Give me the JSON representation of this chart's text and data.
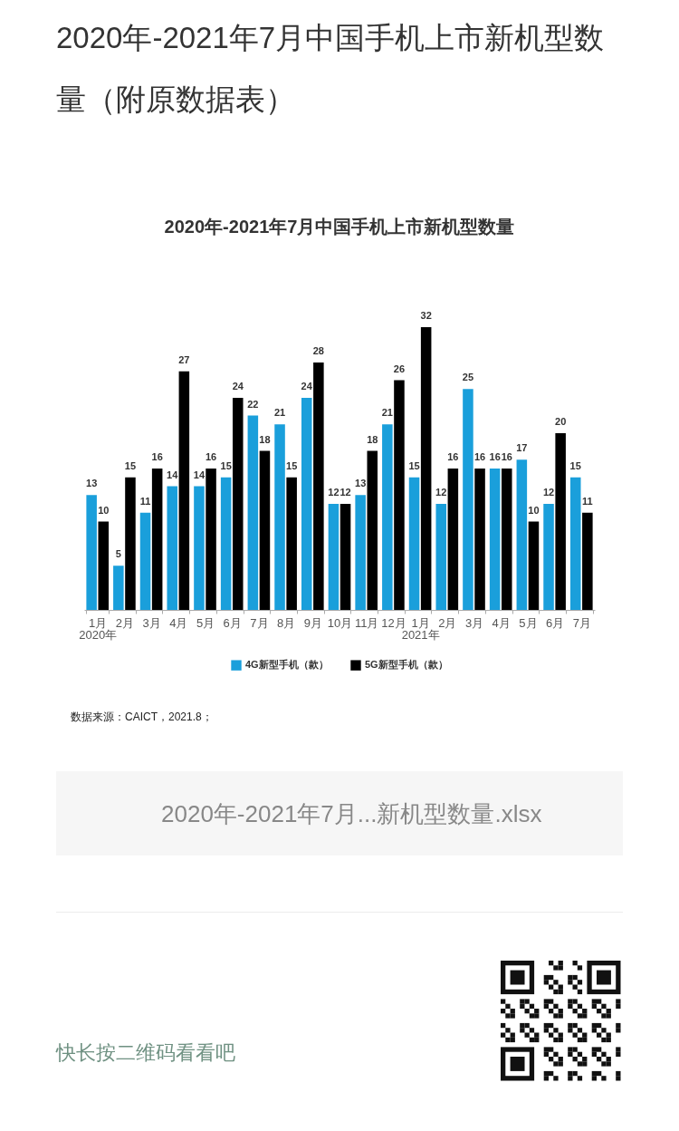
{
  "chart_data": {
    "type": "bar",
    "title": "2020年-2021年7月中国手机上市新机型数量（附原数据表）",
    "subtitle": "2020年-2021年7月中国手机上市新机型数量",
    "categories": [
      "1月\n2020年",
      "2月",
      "3月",
      "4月",
      "5月",
      "6月",
      "7月",
      "8月",
      "9月",
      "10月",
      "11月",
      "12月",
      "1月\n2021年",
      "2月",
      "3月",
      "4月",
      "5月",
      "6月",
      "7月"
    ],
    "series": [
      {
        "name": "4G新型手机（款）",
        "color": "#1a9fdb",
        "values": [
          13,
          5,
          11,
          14,
          14,
          15,
          22,
          21,
          24,
          12,
          13,
          21,
          15,
          12,
          25,
          16,
          17,
          12,
          15
        ]
      },
      {
        "name": "5G新型手机（款）",
        "color": "#000000",
        "values": [
          10,
          15,
          16,
          27,
          16,
          24,
          18,
          15,
          28,
          12,
          18,
          26,
          32,
          16,
          16,
          16,
          10,
          20,
          11
        ]
      }
    ],
    "data_labels": true,
    "legend": "bottom",
    "annotations": [
      "数据来源：CAICT，2021.8；",
      "2020年-2021年7月...新机型数量.xlsx",
      "快长按二维码看看吧"
    ]
  }
}
